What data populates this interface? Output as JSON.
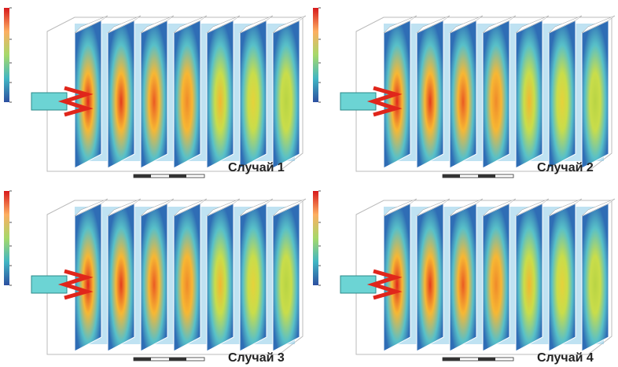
{
  "panels": [
    {
      "caption": "Случай 1"
    },
    {
      "caption": "Случай 2"
    },
    {
      "caption": "Случай 3"
    },
    {
      "caption": "Случай 4"
    }
  ]
}
